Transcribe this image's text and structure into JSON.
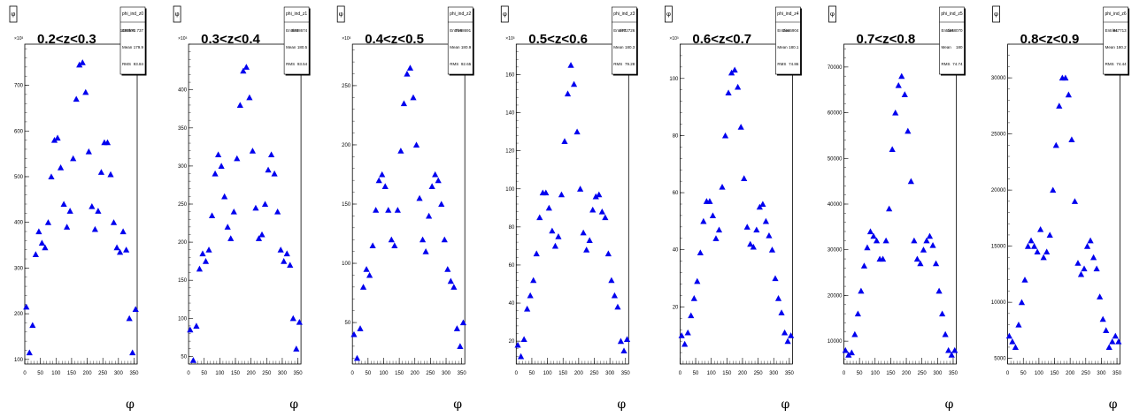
{
  "canvas": {
    "background": "#ffffff",
    "marker_color": "#0000ee"
  },
  "chart_data": [
    {
      "type": "scatter",
      "title": "0.2<z<0.3",
      "xlabel": "φ",
      "ylabel_box": "φ",
      "exponent_label": "×10³",
      "xlim": [
        0,
        360
      ],
      "ylim": [
        90,
        790
      ],
      "xticks": [
        0,
        50,
        100,
        150,
        200,
        250,
        300,
        350
      ],
      "yticks": [
        100,
        200,
        300,
        400,
        500,
        600,
        700
      ],
      "stats": {
        "name": "phi_ind_z0",
        "rows": [
          [
            "Entries",
            "1495570.737"
          ],
          [
            "Mean",
            "179.9"
          ],
          [
            "RMS",
            "93.84"
          ]
        ]
      },
      "x": [
        5,
        15,
        25,
        35,
        45,
        55,
        65,
        75,
        85,
        95,
        105,
        115,
        125,
        135,
        145,
        155,
        165,
        175,
        185,
        195,
        205,
        215,
        225,
        235,
        245,
        255,
        265,
        275,
        285,
        295,
        305,
        315,
        325,
        335,
        345,
        355
      ],
      "y": [
        215,
        115,
        175,
        330,
        380,
        355,
        345,
        400,
        500,
        580,
        585,
        520,
        440,
        390,
        425,
        540,
        670,
        745,
        750,
        685,
        555,
        435,
        385,
        425,
        510,
        575,
        575,
        505,
        400,
        345,
        335,
        380,
        340,
        190,
        115,
        210
      ]
    },
    {
      "type": "scatter",
      "title": "0.3<z<0.4",
      "xlabel": "φ",
      "ylabel_box": "φ",
      "exponent_label": "×10³",
      "xlim": [
        0,
        360
      ],
      "ylim": [
        40,
        460
      ],
      "xticks": [
        0,
        50,
        100,
        150,
        200,
        250,
        300,
        350
      ],
      "yticks": [
        50,
        100,
        150,
        200,
        250,
        300,
        350,
        400
      ],
      "stats": {
        "name": "phi_ind_z1",
        "rows": [
          [
            "Entries",
            "8338674"
          ],
          [
            "Mean",
            "180.5"
          ],
          [
            "RMS",
            "93.54"
          ]
        ]
      },
      "x": [
        5,
        15,
        25,
        35,
        45,
        55,
        65,
        75,
        85,
        95,
        105,
        115,
        125,
        135,
        145,
        155,
        165,
        175,
        185,
        195,
        205,
        215,
        225,
        235,
        245,
        255,
        265,
        275,
        285,
        295,
        305,
        315,
        325,
        335,
        345,
        355
      ],
      "y": [
        85,
        45,
        90,
        165,
        185,
        175,
        190,
        235,
        290,
        315,
        300,
        260,
        220,
        205,
        240,
        310,
        380,
        425,
        430,
        390,
        320,
        245,
        205,
        210,
        250,
        295,
        315,
        290,
        240,
        190,
        175,
        185,
        170,
        100,
        60,
        95
      ]
    },
    {
      "type": "scatter",
      "title": "0.4<z<0.5",
      "xlabel": "φ",
      "ylabel_box": "φ",
      "exponent_label": "×10³",
      "xlim": [
        0,
        360
      ],
      "ylim": [
        15,
        285
      ],
      "xticks": [
        0,
        50,
        100,
        150,
        200,
        250,
        300,
        350
      ],
      "yticks": [
        50,
        100,
        150,
        200,
        250
      ],
      "stats": {
        "name": "phi_ind_z2",
        "rows": [
          [
            "Entries",
            "7168691"
          ],
          [
            "Mean",
            "180.9"
          ],
          [
            "RMS",
            "92.65"
          ]
        ]
      },
      "x": [
        5,
        15,
        25,
        35,
        45,
        55,
        65,
        75,
        85,
        95,
        105,
        115,
        125,
        135,
        145,
        155,
        165,
        175,
        185,
        195,
        205,
        215,
        225,
        235,
        245,
        255,
        265,
        275,
        285,
        295,
        305,
        315,
        325,
        335,
        345,
        355
      ],
      "y": [
        40,
        20,
        45,
        80,
        95,
        90,
        115,
        145,
        170,
        175,
        165,
        145,
        120,
        115,
        145,
        195,
        235,
        260,
        265,
        240,
        200,
        155,
        120,
        110,
        140,
        165,
        175,
        170,
        150,
        120,
        95,
        85,
        80,
        45,
        30,
        50
      ]
    },
    {
      "type": "scatter",
      "title": "0.5<z<0.6",
      "xlabel": "φ",
      "ylabel_box": "φ",
      "exponent_label": "×10³",
      "xlim": [
        0,
        360
      ],
      "ylim": [
        8,
        176
      ],
      "xticks": [
        0,
        50,
        100,
        150,
        200,
        250,
        300,
        350
      ],
      "yticks": [
        20,
        40,
        60,
        80,
        100,
        120,
        140,
        160
      ],
      "stats": {
        "name": "phi_ind_z3",
        "rows": [
          [
            "Entries",
            "4772726"
          ],
          [
            "Mean",
            "180.3"
          ],
          [
            "RMS",
            "79.28"
          ]
        ]
      },
      "x": [
        5,
        15,
        25,
        35,
        45,
        55,
        65,
        75,
        85,
        95,
        105,
        115,
        125,
        135,
        145,
        155,
        165,
        175,
        185,
        195,
        205,
        215,
        225,
        235,
        245,
        255,
        265,
        275,
        285,
        295,
        305,
        315,
        325,
        335,
        345,
        355
      ],
      "y": [
        18,
        12,
        21,
        37,
        44,
        52,
        66,
        85,
        98,
        98,
        90,
        78,
        70,
        75,
        97,
        125,
        150,
        165,
        155,
        130,
        100,
        77,
        68,
        73,
        89,
        96,
        97,
        88,
        85,
        66,
        52,
        44,
        38,
        20,
        15,
        21
      ]
    },
    {
      "type": "scatter",
      "title": "0.6<z<0.7",
      "xlabel": "φ",
      "ylabel_box": "φ",
      "exponent_label": "×10³",
      "xlim": [
        0,
        360
      ],
      "ylim": [
        0,
        112
      ],
      "xticks": [
        0,
        50,
        100,
        150,
        200,
        250,
        300,
        350
      ],
      "yticks": [
        20,
        40,
        60,
        80,
        100
      ],
      "stats": {
        "name": "phi_ind_z4",
        "rows": [
          [
            "Entries",
            "3446904"
          ],
          [
            "Mean",
            "180.1"
          ],
          [
            "RMS",
            "74.86"
          ]
        ]
      },
      "x": [
        5,
        15,
        25,
        35,
        45,
        55,
        65,
        75,
        85,
        95,
        105,
        115,
        125,
        135,
        145,
        155,
        165,
        175,
        185,
        195,
        205,
        215,
        225,
        235,
        245,
        255,
        265,
        275,
        285,
        295,
        305,
        315,
        325,
        335,
        345,
        355
      ],
      "y": [
        10,
        7,
        11,
        17,
        23,
        29,
        39,
        50,
        57,
        57,
        52,
        44,
        47,
        62,
        80,
        95,
        102,
        103,
        97,
        83,
        65,
        48,
        42,
        41,
        47,
        55,
        56,
        50,
        45,
        40,
        30,
        23,
        18,
        11,
        8,
        10
      ]
    },
    {
      "type": "scatter",
      "title": "0.7<z<0.8",
      "xlabel": "φ",
      "ylabel_box": "φ",
      "exponent_label": "",
      "xlim": [
        0,
        360
      ],
      "ylim": [
        5000,
        75000
      ],
      "xticks": [
        0,
        50,
        100,
        150,
        200,
        250,
        300,
        350
      ],
      "yticks": [
        10000,
        20000,
        30000,
        40000,
        50000,
        60000,
        70000
      ],
      "stats": {
        "name": "phi_ind_z5",
        "rows": [
          [
            "Entries",
            "1168070"
          ],
          [
            "Mean",
            "180"
          ],
          [
            "RMS",
            "74.74"
          ]
        ]
      },
      "x": [
        5,
        15,
        25,
        35,
        45,
        55,
        65,
        75,
        85,
        95,
        105,
        115,
        125,
        135,
        145,
        155,
        165,
        175,
        185,
        195,
        205,
        215,
        225,
        235,
        245,
        255,
        265,
        275,
        285,
        295,
        305,
        315,
        325,
        335,
        345,
        355
      ],
      "y": [
        8000,
        7000,
        7500,
        11500,
        16000,
        21000,
        26500,
        30500,
        34000,
        33000,
        32000,
        28000,
        28000,
        32000,
        39000,
        52000,
        60000,
        66000,
        68000,
        64000,
        56000,
        45000,
        32000,
        28000,
        27000,
        30000,
        32000,
        33000,
        31000,
        27000,
        21000,
        16000,
        11500,
        8000,
        7000,
        8000
      ]
    },
    {
      "type": "scatter",
      "title": "0.8<z<0.9",
      "xlabel": "φ",
      "ylabel_box": "φ",
      "exponent_label": "",
      "xlim": [
        0,
        360
      ],
      "ylim": [
        4500,
        33000
      ],
      "xticks": [
        0,
        50,
        100,
        150,
        200,
        250,
        300,
        350
      ],
      "yticks": [
        5000,
        10000,
        15000,
        20000,
        25000,
        30000
      ],
      "stats": {
        "name": "phi_ind_z6",
        "rows": [
          [
            "Entries",
            "847713"
          ],
          [
            "Mean",
            "180.2"
          ],
          [
            "RMS",
            "74.44"
          ]
        ]
      },
      "x": [
        5,
        15,
        25,
        35,
        45,
        55,
        65,
        75,
        85,
        95,
        105,
        115,
        125,
        135,
        145,
        155,
        165,
        175,
        185,
        195,
        205,
        215,
        225,
        235,
        245,
        255,
        265,
        275,
        285,
        295,
        305,
        315,
        325,
        335,
        345,
        355
      ],
      "y": [
        7000,
        6500,
        6000,
        8000,
        10000,
        12000,
        15000,
        15500,
        15000,
        14500,
        16500,
        14000,
        14500,
        16000,
        20000,
        24000,
        27500,
        30000,
        30000,
        28500,
        24500,
        19000,
        13500,
        12500,
        13000,
        15000,
        15500,
        14000,
        13000,
        10500,
        8500,
        7500,
        6000,
        6500,
        7000,
        6500
      ]
    }
  ]
}
